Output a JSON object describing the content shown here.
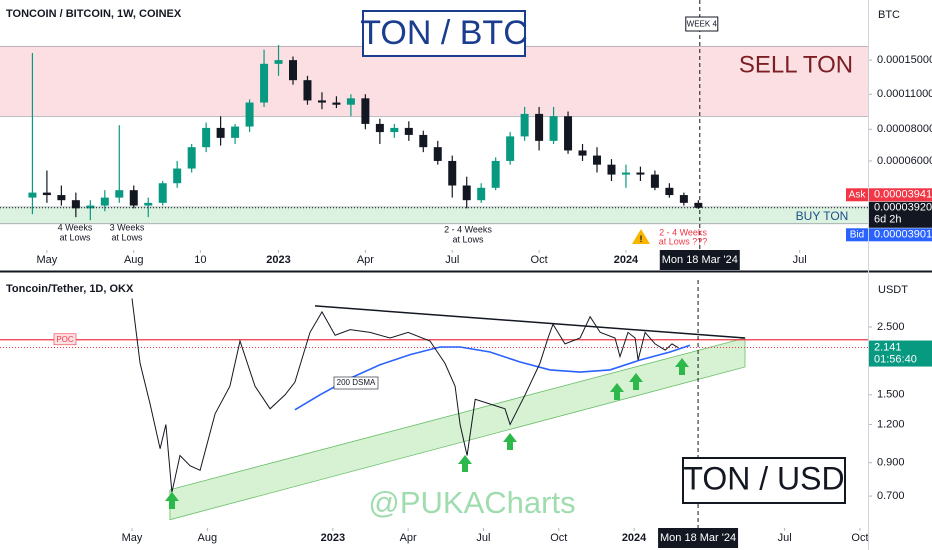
{
  "chart_data": [
    {
      "type": "candlestick",
      "header": "TONCOIN / BITCOIN, 1W, COINEX",
      "title": "TON / BTC",
      "axis_unit": "BTC",
      "week_label": "WEEK 4",
      "log": true,
      "up_color": "#089981",
      "down_color": "#131722",
      "x": [
        3.5,
        4,
        4.5,
        5,
        5.5,
        6,
        6.5,
        7,
        7.5,
        8,
        8.5,
        9,
        9.5,
        10,
        10.5,
        11,
        11.5,
        12,
        12.5,
        13,
        13.5,
        14,
        14.5,
        15,
        15.5,
        16,
        16.5,
        17,
        17.5,
        18,
        18.5,
        19,
        19.5,
        20,
        20.5,
        21,
        21.5,
        22,
        22.5,
        23,
        23.5,
        24,
        24.5,
        25,
        25.5,
        26,
        26.5
      ],
      "open": [
        4.3e-05,
        4.5e-05,
        4.4e-05,
        4.2e-05,
        3.9e-05,
        4e-05,
        4.3e-05,
        4.6e-05,
        4e-05,
        4.1e-05,
        4.9e-05,
        5.6e-05,
        6.8e-05,
        8.1e-05,
        7.4e-05,
        8.2e-05,
        0.000102,
        0.000145,
        0.00015,
        0.000125,
        0.000104,
        0.000102,
        0.0001,
        0.000106,
        8.4e-05,
        7.8e-05,
        8.1e-05,
        7.6e-05,
        6.8e-05,
        6e-05,
        4.8e-05,
        4.2e-05,
        4.7e-05,
        6e-05,
        7.5e-05,
        9.2e-05,
        7.2e-05,
        9e-05,
        6.6e-05,
        6.3e-05,
        5.8e-05,
        5.3e-05,
        5.4e-05,
        5.3e-05,
        4.7e-05,
        4.4e-05,
        4.1e-05
      ],
      "high": [
        0.00016,
        5.5e-05,
        4.8e-05,
        4.5e-05,
        4.2e-05,
        4.6e-05,
        8.3e-05,
        4.8e-05,
        4.3e-05,
        5e-05,
        6e-05,
        7e-05,
        8.5e-05,
        9e-05,
        8.4e-05,
        0.000105,
        0.000165,
        0.000172,
        0.000155,
        0.00013,
        0.000112,
        0.000108,
        0.00011,
        0.00011,
        8.8e-05,
        8.4e-05,
        8.6e-05,
        7.9e-05,
        7.2e-05,
        6.3e-05,
        5.2e-05,
        4.9e-05,
        6.2e-05,
        7.8e-05,
        9.8e-05,
        9.8e-05,
        9.8e-05,
        9.4e-05,
        7e-05,
        6.8e-05,
        6.1e-05,
        5.8e-05,
        5.7e-05,
        5.5e-05,
        4.9e-05,
        4.5e-05,
        4.2e-05
      ],
      "low": [
        3.7e-05,
        4.1e-05,
        4e-05,
        3.6e-05,
        3.5e-05,
        3.8e-05,
        4.1e-05,
        3.9e-05,
        3.6e-05,
        4e-05,
        4.7e-05,
        5.4e-05,
        6.5e-05,
        6.9e-05,
        7e-05,
        7.8e-05,
        9.8e-05,
        0.00013,
        0.00012,
        0.0001,
        9.6e-05,
        9.7e-05,
        9e-05,
        8e-05,
        7e-05,
        7.4e-05,
        7.2e-05,
        6.5e-05,
        5.8e-05,
        4.3e-05,
        3.9e-05,
        4.1e-05,
        4.6e-05,
        5.8e-05,
        7.2e-05,
        6.6e-05,
        7e-05,
        6.4e-05,
        6e-05,
        5.4e-05,
        5e-05,
        4.7e-05,
        5e-05,
        4.6e-05,
        4.3e-05,
        4e-05,
        3.88e-05
      ],
      "close": [
        4.5e-05,
        4.4e-05,
        4.2e-05,
        3.9e-05,
        4e-05,
        4.3e-05,
        4.6e-05,
        4e-05,
        4.1e-05,
        4.9e-05,
        5.6e-05,
        6.8e-05,
        8.1e-05,
        7.4e-05,
        8.2e-05,
        0.000102,
        0.000145,
        0.00015,
        0.000125,
        0.000104,
        0.000102,
        0.0001,
        0.000106,
        8.4e-05,
        7.8e-05,
        8.1e-05,
        7.6e-05,
        6.8e-05,
        6e-05,
        4.8e-05,
        4.2e-05,
        4.7e-05,
        6e-05,
        7.5e-05,
        9.2e-05,
        7.2e-05,
        9e-05,
        6.6e-05,
        6.3e-05,
        5.8e-05,
        5.3e-05,
        5.4e-05,
        5.3e-05,
        4.7e-05,
        4.4e-05,
        4.1e-05,
        3.92e-05
      ],
      "xlim": [
        2.38,
        32.36
      ],
      "ylim": [
        2.72e-05,
        0.000259
      ],
      "xticks": [
        {
          "value": 4,
          "label": "May"
        },
        {
          "value": 7,
          "label": "Aug"
        },
        {
          "value": 9.3,
          "label": "10"
        },
        {
          "value": 12,
          "label": "2023"
        },
        {
          "value": 15,
          "label": "Apr"
        },
        {
          "value": 18,
          "label": "Jul"
        },
        {
          "value": 21,
          "label": "Oct"
        },
        {
          "value": 24,
          "label": "2024"
        },
        {
          "value": 30,
          "label": "Jul"
        }
      ],
      "yticks": [
        {
          "value": 0.00015,
          "label": "0.00015000"
        },
        {
          "value": 0.00011,
          "label": "0.00011000"
        },
        {
          "value": 8e-05,
          "label": "0.00008000"
        },
        {
          "value": 6e-05,
          "label": "0.00006000"
        }
      ],
      "zones": [
        {
          "label": "SELL TON",
          "range": [
            9e-05,
            0.00017
          ],
          "color": "#fcdfe2"
        },
        {
          "label": "BUY TON",
          "range": [
            3.39e-05,
            3.95e-05
          ],
          "color": "#dcf2e0"
        }
      ],
      "annotations": [
        [
          "4 Weeks",
          "at Lows"
        ],
        [
          "3 Weeks",
          "at Lows"
        ],
        [
          "2 - 4 Weeks",
          "at Lows"
        ]
      ],
      "alert": [
        "2 - 4 Weeks",
        "at Lows ???"
      ],
      "price_tags": [
        {
          "name": "Ask",
          "value": 3.941e-05,
          "label": "0.00003941",
          "color": "#f23645"
        },
        {
          "value": 3.92e-05,
          "label": "0.00003920",
          "countdown": "6d 2h",
          "color": "#131722"
        },
        {
          "name": "Bid",
          "value": 3.901e-05,
          "label": "0.00003901",
          "color": "#2962ff"
        }
      ],
      "cursor": {
        "x": 26.55,
        "label": "Mon 18 Mar '24"
      }
    },
    {
      "type": "line",
      "header": "Toncoin/Tether, 1D, OKX",
      "title": "TON / USD",
      "watermark": "@PUKACharts",
      "axis_unit": "USDT",
      "log": true,
      "price": {
        "color": "#131722",
        "x": [
          4.0,
          4.32,
          4.72,
          5.12,
          5.35,
          5.59,
          5.91,
          6.31,
          6.71,
          7.31,
          7.9,
          8.3,
          8.9,
          9.5,
          10.1,
          10.49,
          11.09,
          11.57,
          12.09,
          12.69,
          13.48,
          14.28,
          15.0,
          15.87,
          16.47,
          16.87,
          17.07,
          17.35,
          17.67,
          18.26,
          18.86,
          19.06,
          19.66,
          20.25,
          20.57,
          20.77,
          21.25,
          21.85,
          22.25,
          22.65,
          23.24,
          23.44,
          23.76,
          24.04,
          24.16,
          24.44,
          24.84,
          25.24,
          25.51,
          25.75
        ],
        "values": [
          3.1,
          1.9,
          1.4,
          1.0,
          1.2,
          0.72,
          0.95,
          0.88,
          0.85,
          1.3,
          1.6,
          2.25,
          1.6,
          1.35,
          1.5,
          1.65,
          2.4,
          2.8,
          2.35,
          2.45,
          2.4,
          2.3,
          2.4,
          2.25,
          1.9,
          1.6,
          1.2,
          0.95,
          1.45,
          1.4,
          1.35,
          1.2,
          1.5,
          1.9,
          2.3,
          2.55,
          2.2,
          2.3,
          2.7,
          2.4,
          2.3,
          2.0,
          2.4,
          2.3,
          1.95,
          2.4,
          2.2,
          2.1,
          2.2,
          2.141
        ]
      },
      "sma": {
        "name": "200 DSMA",
        "color": "#2962ff",
        "x": [
          10.49,
          11.49,
          12.69,
          13.88,
          15.08,
          16.27,
          17.07,
          18.26,
          19.46,
          20.65,
          21.85,
          23.04,
          24.24,
          25.43,
          26.23
        ],
        "values": [
          1.34,
          1.5,
          1.7,
          1.88,
          2.03,
          2.15,
          2.15,
          2.07,
          1.92,
          1.81,
          1.78,
          1.81,
          1.95,
          2.07,
          2.18
        ]
      },
      "resistance": {
        "x": [
          11.29,
          28.42
        ],
        "values": [
          2.93,
          2.3
        ],
        "color": "#131722"
      },
      "channel": {
        "x": [
          5.51,
          28.42
        ],
        "upper": [
          0.734,
          2.3
        ],
        "lower": [
          0.586,
          1.85
        ],
        "color": "#d6f2d2"
      },
      "poc": {
        "label": "POC",
        "value": 2.27,
        "color": "#f23645"
      },
      "last": {
        "value": 2.141,
        "countdown": "01:56:40",
        "color": "#089981"
      },
      "xlim": [
        -1.26,
        33.32
      ],
      "ylim": [
        0.563,
        3.56
      ],
      "xticks": [
        {
          "value": 4,
          "label": "May"
        },
        {
          "value": 7,
          "label": "Aug"
        },
        {
          "value": 12,
          "label": "2023"
        },
        {
          "value": 15,
          "label": "Apr"
        },
        {
          "value": 18,
          "label": "Jul"
        },
        {
          "value": 21,
          "label": "Oct"
        },
        {
          "value": 24,
          "label": "2024"
        },
        {
          "value": 30,
          "label": "Jul"
        },
        {
          "value": 33,
          "label": "Oct"
        }
      ],
      "yticks": [
        {
          "value": 2.5,
          "label": "2.500"
        },
        {
          "value": 1.5,
          "label": "1.500"
        },
        {
          "value": 1.2,
          "label": "1.200"
        },
        {
          "value": 0.9,
          "label": "0.900"
        },
        {
          "value": 0.7,
          "label": "0.700"
        }
      ],
      "cursor": {
        "x": 26.55,
        "label": "Mon 18 Mar '24"
      }
    }
  ]
}
